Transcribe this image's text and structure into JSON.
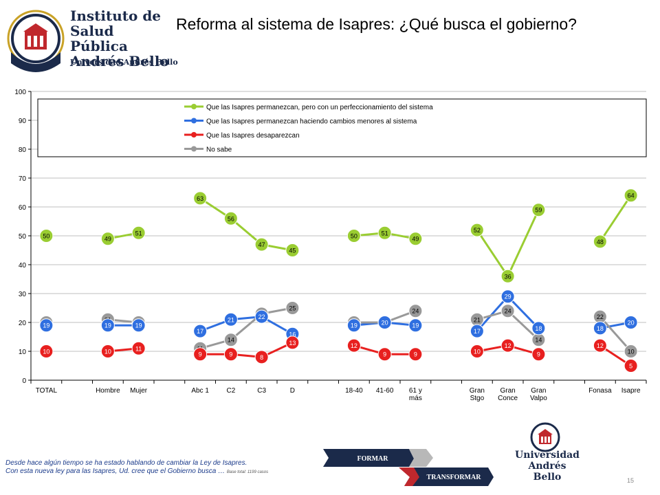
{
  "header": {
    "title": "Reforma al sistema de Isapres: ¿Qué busca el gobierno?",
    "logo_line1": "Instituto de",
    "logo_line2": "Salud Pública",
    "logo_line3": "Andrés Bello",
    "logo_sub": "Universidad Andrés Bello"
  },
  "chart_data": {
    "type": "line",
    "ylim": [
      0,
      100
    ],
    "yticks": [
      0,
      10,
      20,
      30,
      40,
      50,
      60,
      70,
      80,
      90,
      100
    ],
    "categories": [
      "TOTAL",
      "",
      "Hombre",
      "Mujer",
      "",
      "Abc 1",
      "C2",
      "C3",
      "D",
      "",
      "18-40",
      "41-60",
      "61 y más",
      "",
      "Gran Stgo",
      "Gran Conce",
      "Gran Valpo",
      "",
      "Fonasa",
      "Isapre"
    ],
    "category_lines": [
      [
        "TOTAL"
      ],
      [
        ""
      ],
      [
        "Hombre"
      ],
      [
        "Mujer"
      ],
      [
        ""
      ],
      [
        "Abc 1"
      ],
      [
        "C2"
      ],
      [
        "C3"
      ],
      [
        "D"
      ],
      [
        ""
      ],
      [
        "18-40"
      ],
      [
        "41-60"
      ],
      [
        "61 y",
        "más"
      ],
      [
        ""
      ],
      [
        "Gran",
        "Stgo"
      ],
      [
        "Gran",
        "Conce"
      ],
      [
        "Gran",
        "Valpo"
      ],
      [
        ""
      ],
      [
        "Fonasa"
      ],
      [
        "Isapre"
      ]
    ],
    "legend_position": "top",
    "series": [
      {
        "name": "Que las Isapres permanezcan, pero con un perfeccionamiento del sistema",
        "color": "#9acd32",
        "values": [
          50,
          null,
          49,
          51,
          null,
          63,
          56,
          47,
          45,
          null,
          50,
          51,
          49,
          null,
          52,
          36,
          59,
          null,
          48,
          64
        ]
      },
      {
        "name": "Que las Isapres permanezcan haciendo cambios menores al sistema",
        "color": "#2f6fe0",
        "values": [
          19,
          null,
          19,
          19,
          null,
          17,
          21,
          22,
          16,
          null,
          19,
          20,
          19,
          null,
          17,
          29,
          18,
          null,
          18,
          20
        ]
      },
      {
        "name": "Que las Isapres desaparezcan",
        "color": "#e8201f",
        "values": [
          10,
          null,
          10,
          11,
          null,
          9,
          9,
          8,
          13,
          null,
          12,
          9,
          9,
          null,
          10,
          12,
          9,
          null,
          12,
          5
        ]
      },
      {
        "name": "No sabe",
        "color": "#999999",
        "values": [
          20,
          null,
          21,
          20,
          null,
          11,
          14,
          23,
          25,
          null,
          20,
          20,
          24,
          null,
          21,
          24,
          14,
          null,
          22,
          10
        ]
      }
    ],
    "label_series_order": [
      3,
      1,
      2,
      0
    ]
  },
  "footer": {
    "note_line1": "Desde hace algún tiempo se ha estado hablando de cambiar la Ley de Isapres.",
    "note_line2": "Con esta nueva ley para las Isapres, Ud. cree que el Gobierno busca …",
    "base": "Base total: 1199 casos",
    "banner_top": "FORMAR",
    "banner_bottom": "TRANSFORMAR",
    "logo_bottom_line1": "Universidad",
    "logo_bottom_line2": "Andrés Bello",
    "page_number": "15"
  }
}
